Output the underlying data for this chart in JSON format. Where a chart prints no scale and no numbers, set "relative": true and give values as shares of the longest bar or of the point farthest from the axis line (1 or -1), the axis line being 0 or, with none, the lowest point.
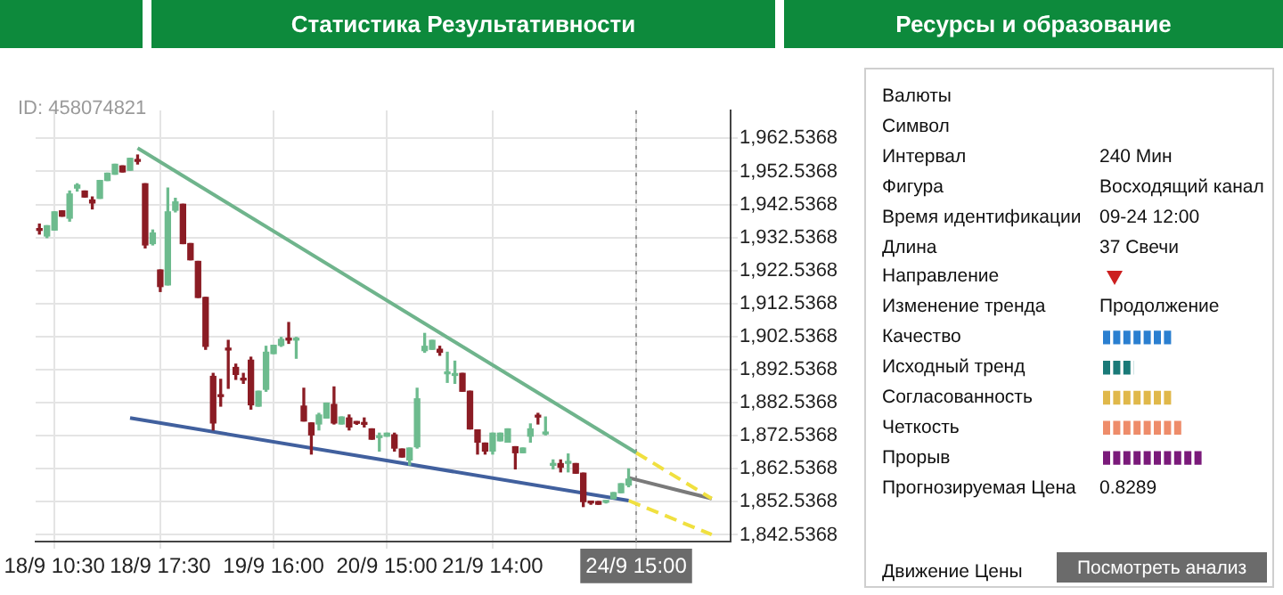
{
  "chart_data": [
    {
      "type": "other",
      "annotations": [
        "Статистика Результативности",
        "Ресурсы и образование"
      ]
    },
    {
      "type": "candlestick",
      "annotations": [
        "ID: 458074821"
      ],
      "categories": [
        null,
        null,
        "18/9 10:30",
        null,
        null,
        null,
        null,
        null,
        null,
        null,
        null,
        null,
        null,
        null,
        null,
        null,
        "18/9 17:30",
        null,
        null,
        null,
        null,
        null,
        null,
        null,
        null,
        null,
        null,
        null,
        null,
        null,
        null,
        "19/9 16:00",
        null,
        null,
        null,
        null,
        null,
        null,
        null,
        null,
        null,
        null,
        null,
        null,
        null,
        null,
        "20/9 15:00",
        null,
        null,
        null,
        null,
        null,
        null,
        null,
        null,
        null,
        null,
        null,
        null,
        null,
        "21/9 14:00",
        null,
        null,
        null,
        null,
        null,
        null,
        null,
        null,
        null,
        null,
        null,
        null,
        null,
        null,
        null,
        null,
        null,
        null,
        "24/9 15:00",
        null,
        null,
        null,
        null,
        null,
        null,
        null,
        null,
        null,
        null,
        null,
        null
      ],
      "ohlc": [
        [
          1934.8,
          1936.6,
          1933.6,
          1934.7
        ],
        [
          1933.0,
          1936.1,
          1932.5,
          1936.1
        ],
        [
          1934.8,
          1940.3,
          1934.8,
          1940.3
        ],
        [
          1940.6,
          1940.6,
          1939.0,
          1939.0
        ],
        [
          1938.4,
          1946.6,
          1937.5,
          1945.7
        ],
        [
          1947.5,
          1948.8,
          1946.6,
          1948.4
        ],
        [
          1946.6,
          1946.6,
          1944.8,
          1944.8
        ],
        [
          1943.9,
          1944.8,
          1941.2,
          1943.0
        ],
        [
          1944.4,
          1949.8,
          1944.4,
          1949.8
        ],
        [
          1949.8,
          1952.0,
          1949.8,
          1952.0
        ],
        [
          1951.7,
          1954.7,
          1951.7,
          1954.7
        ],
        [
          1954.2,
          1954.2,
          1952.4,
          1952.4
        ],
        [
          1952.9,
          1956.5,
          1952.9,
          1956.5
        ],
        [
          1956.0,
          1957.5,
          1954.8,
          1955.6
        ],
        [
          1948.8,
          1948.8,
          1929.4,
          1930.3
        ],
        [
          1930.7,
          1934.8,
          1930.3,
          1933.9
        ],
        [
          1922.7,
          1922.7,
          1916.2,
          1917.7
        ],
        [
          1918.2,
          1947.5,
          1918.2,
          1940.3
        ],
        [
          1940.8,
          1944.4,
          1940.3,
          1943.3
        ],
        [
          1942.6,
          1942.6,
          1930.7,
          1930.7
        ],
        [
          1930.7,
          1930.7,
          1925.8,
          1925.8
        ],
        [
          1925.3,
          1925.3,
          1914.4,
          1914.4
        ],
        [
          1914.4,
          1914.4,
          1898.7,
          1899.6
        ],
        [
          1890.5,
          1891.4,
          1874.3,
          1876.4
        ],
        [
          1884.6,
          1889.6,
          1881.5,
          1884.4
        ],
        [
          1898.7,
          1901.4,
          1886.9,
          1898.5
        ],
        [
          1893.2,
          1894.2,
          1889.6,
          1891.1
        ],
        [
          1889.6,
          1891.4,
          1888.4,
          1889.4
        ],
        [
          1895.4,
          1896.3,
          1880.6,
          1881.9
        ],
        [
          1881.5,
          1886.0,
          1881.5,
          1886.0
        ],
        [
          1886.6,
          1899.6,
          1886.0,
          1897.8
        ],
        [
          1897.4,
          1899.9,
          1897.4,
          1899.9
        ],
        [
          1899.9,
          1902.3,
          1899.6,
          1901.7
        ],
        [
          1901.7,
          1906.8,
          1900.5,
          1901.5
        ],
        [
          1901.5,
          1902.3,
          1896.0,
          1901.7
        ],
        [
          1881.5,
          1886.9,
          1877.0,
          1877.0
        ],
        [
          1876.4,
          1876.4,
          1867.0,
          1872.8
        ],
        [
          1876.1,
          1879.3,
          1874.3,
          1878.8
        ],
        [
          1877.9,
          1882.4,
          1877.9,
          1882.4
        ],
        [
          1882.0,
          1887.3,
          1876.1,
          1876.4
        ],
        [
          1876.1,
          1878.2,
          1876.1,
          1878.2
        ],
        [
          1877.9,
          1878.8,
          1874.3,
          1875.2
        ],
        [
          1876.4,
          1876.8,
          1876.0,
          1876.3
        ],
        [
          1876.1,
          1877.9,
          1875.2,
          1876.0
        ],
        [
          1874.6,
          1874.6,
          1871.5,
          1871.5
        ],
        [
          1872.0,
          1873.3,
          1867.9,
          1872.1
        ],
        [
          1872.4,
          1873.3,
          1872.4,
          1873.3
        ],
        [
          1872.8,
          1873.3,
          1867.9,
          1868.8
        ],
        [
          1868.5,
          1868.5,
          1866.1,
          1866.1
        ],
        [
          1865.2,
          1868.8,
          1863.7,
          1868.8
        ],
        [
          1869.2,
          1886.9,
          1868.8,
          1883.7
        ],
        [
          1898.3,
          1903.5,
          1897.8,
          1899.6
        ],
        [
          1898.7,
          1901.4,
          1898.7,
          1901.4
        ],
        [
          1898.7,
          1899.6,
          1896.9,
          1897.8
        ],
        [
          1891.3,
          1897.8,
          1888.7,
          1891.4
        ],
        [
          1890.8,
          1895.1,
          1888.4,
          1890.9
        ],
        [
          1891.4,
          1891.4,
          1886.0,
          1886.0
        ],
        [
          1886.0,
          1886.0,
          1874.6,
          1874.6
        ],
        [
          1874.3,
          1874.3,
          1867.0,
          1870.6
        ],
        [
          1870.3,
          1870.3,
          1867.0,
          1867.9
        ],
        [
          1867.9,
          1873.3,
          1867.0,
          1873.3
        ],
        [
          1871.0,
          1873.3,
          1871.0,
          1873.3
        ],
        [
          1870.6,
          1874.6,
          1870.6,
          1874.6
        ],
        [
          1869.2,
          1869.2,
          1862.5,
          1867.4
        ],
        [
          1867.4,
          1868.8,
          1867.4,
          1868.8
        ],
        [
          1872.4,
          1876.1,
          1870.6,
          1874.6
        ],
        [
          1878.4,
          1879.3,
          1876.1,
          1878.2
        ],
        [
          1873.1,
          1878.2,
          1872.8,
          1873.3
        ],
        [
          1863.6,
          1865.2,
          1862.5,
          1863.7
        ],
        [
          1864.1,
          1865.2,
          1861.6,
          1863.0
        ],
        [
          1864.2,
          1867.0,
          1861.6,
          1864.3
        ],
        [
          1864.1,
          1864.1,
          1861.2,
          1861.2
        ],
        [
          1861.2,
          1861.2,
          1851.1,
          1852.6
        ],
        [
          1852.3,
          1852.6,
          1851.8,
          1852.2
        ],
        [
          1852.6,
          1852.6,
          1851.8,
          1851.8
        ],
        [
          1852.4,
          1852.8,
          1852.2,
          1852.6
        ],
        [
          1853.5,
          1855.3,
          1853.5,
          1855.3
        ],
        [
          1855.3,
          1858.0,
          1855.3,
          1858.0
        ],
        [
          1857.6,
          1862.5,
          1857.1,
          1859.4
        ],
        null,
        null,
        null,
        null,
        null,
        null,
        null,
        null,
        null,
        null,
        null,
        null,
        null
      ],
      "colors": [
        "#8b1c24",
        "#6dbb8e",
        "#6dbb8e",
        "#8b1c24",
        "#6dbb8e",
        "#6dbb8e",
        "#8b1c24",
        "#8b1c24",
        "#6dbb8e",
        "#6dbb8e",
        "#6dbb8e",
        "#8b1c24",
        "#6dbb8e",
        "#8b1c24",
        "#8b1c24",
        "#6dbb8e",
        "#8b1c24",
        "#6dbb8e",
        "#6dbb8e",
        "#8b1c24",
        "#8b1c24",
        "#8b1c24",
        "#8b1c24",
        "#8b1c24",
        "#8b1c24",
        "#8b1c24",
        "#8b1c24",
        "#8b1c24",
        "#8b1c24",
        "#6dbb8e",
        "#6dbb8e",
        "#6dbb8e",
        "#6dbb8e",
        "#8b1c24",
        "#6dbb8e",
        "#8b1c24",
        "#8b1c24",
        "#6dbb8e",
        "#6dbb8e",
        "#8b1c24",
        "#6dbb8e",
        "#8b1c24",
        "#8b1c24",
        "#8b1c24",
        "#8b1c24",
        "#6dbb8e",
        "#6dbb8e",
        "#8b1c24",
        "#8b1c24",
        "#6dbb8e",
        "#6dbb8e",
        "#6dbb8e",
        "#6dbb8e",
        "#8b1c24",
        "#6dbb8e",
        "#6dbb8e",
        "#8b1c24",
        "#8b1c24",
        "#8b1c24",
        "#8b1c24",
        "#6dbb8e",
        "#6dbb8e",
        "#6dbb8e",
        "#8b1c24",
        "#6dbb8e",
        "#6dbb8e",
        "#8b1c24",
        "#6dbb8e",
        "#6dbb8e",
        "#8b1c24",
        "#6dbb8e",
        "#8b1c24",
        "#8b1c24",
        "#8b1c24",
        "#8b1c24",
        "#6dbb8e",
        "#6dbb8e",
        "#6dbb8e",
        "#6dbb8e",
        null,
        null,
        null,
        null,
        null,
        null,
        null,
        null,
        null,
        null,
        null,
        null,
        null
      ],
      "series": [
        {
          "type": "line",
          "color": "#6fb48c",
          "line_style": "solid",
          "values": [
            null,
            null,
            null,
            null,
            null,
            null,
            null,
            null,
            null,
            null,
            null,
            null,
            null,
            1959.6,
            null,
            null,
            null,
            null,
            null,
            null,
            null,
            null,
            null,
            null,
            null,
            null,
            null,
            null,
            null,
            null,
            null,
            null,
            null,
            null,
            null,
            null,
            null,
            null,
            null,
            null,
            null,
            null,
            null,
            null,
            null,
            null,
            null,
            null,
            null,
            null,
            null,
            null,
            null,
            null,
            null,
            null,
            null,
            null,
            null,
            null,
            null,
            null,
            null,
            null,
            null,
            null,
            null,
            null,
            null,
            null,
            null,
            null,
            null,
            null,
            null,
            null,
            null,
            null,
            null,
            1867.4,
            null,
            null,
            null,
            null,
            null,
            null,
            null,
            null,
            null,
            null,
            null,
            null
          ]
        },
        {
          "type": "line",
          "color": "#f0e040",
          "line_style": "dashed",
          "values": [
            null,
            null,
            null,
            null,
            null,
            null,
            null,
            null,
            null,
            null,
            null,
            null,
            null,
            null,
            null,
            null,
            null,
            null,
            null,
            null,
            null,
            null,
            null,
            null,
            null,
            null,
            null,
            null,
            null,
            null,
            null,
            null,
            null,
            null,
            null,
            null,
            null,
            null,
            null,
            null,
            null,
            null,
            null,
            null,
            null,
            null,
            null,
            null,
            null,
            null,
            null,
            null,
            null,
            null,
            null,
            null,
            null,
            null,
            null,
            null,
            null,
            null,
            null,
            null,
            null,
            null,
            null,
            null,
            null,
            null,
            null,
            null,
            null,
            null,
            null,
            null,
            null,
            null,
            null,
            1867.4,
            null,
            null,
            null,
            null,
            null,
            null,
            null,
            null,
            null,
            1853.5,
            null,
            null
          ]
        },
        {
          "type": "line",
          "color": "#41609e",
          "line_style": "solid",
          "values": [
            null,
            null,
            null,
            null,
            null,
            null,
            null,
            null,
            null,
            null,
            null,
            null,
            1877.9,
            null,
            null,
            null,
            null,
            null,
            null,
            null,
            null,
            null,
            null,
            null,
            null,
            null,
            null,
            null,
            null,
            null,
            null,
            null,
            null,
            null,
            null,
            null,
            null,
            null,
            null,
            null,
            null,
            null,
            null,
            null,
            null,
            null,
            null,
            null,
            null,
            null,
            null,
            null,
            null,
            null,
            null,
            null,
            null,
            null,
            null,
            null,
            null,
            null,
            null,
            null,
            null,
            null,
            null,
            null,
            null,
            null,
            null,
            null,
            null,
            null,
            null,
            null,
            null,
            null,
            1852.9,
            null,
            null,
            null,
            null,
            null,
            null,
            null,
            null,
            null,
            null,
            null,
            null,
            null
          ]
        },
        {
          "type": "line",
          "color": "#f0e040",
          "line_style": "dashed",
          "values": [
            null,
            null,
            null,
            null,
            null,
            null,
            null,
            null,
            null,
            null,
            null,
            null,
            null,
            null,
            null,
            null,
            null,
            null,
            null,
            null,
            null,
            null,
            null,
            null,
            null,
            null,
            null,
            null,
            null,
            null,
            null,
            null,
            null,
            null,
            null,
            null,
            null,
            null,
            null,
            null,
            null,
            null,
            null,
            null,
            null,
            null,
            null,
            null,
            null,
            null,
            null,
            null,
            null,
            null,
            null,
            null,
            null,
            null,
            null,
            null,
            null,
            null,
            null,
            null,
            null,
            null,
            null,
            null,
            null,
            null,
            null,
            null,
            null,
            null,
            null,
            null,
            null,
            null,
            1852.9,
            null,
            null,
            null,
            null,
            null,
            null,
            null,
            null,
            null,
            null,
            1842.6,
            null,
            null
          ]
        },
        {
          "type": "line",
          "color": "#7a7a7a",
          "line_style": "solid",
          "values": [
            null,
            null,
            null,
            null,
            null,
            null,
            null,
            null,
            null,
            null,
            null,
            null,
            null,
            null,
            null,
            null,
            null,
            null,
            null,
            null,
            null,
            null,
            null,
            null,
            null,
            null,
            null,
            null,
            null,
            null,
            null,
            null,
            null,
            null,
            null,
            null,
            null,
            null,
            null,
            null,
            null,
            null,
            null,
            null,
            null,
            null,
            null,
            null,
            null,
            null,
            null,
            null,
            null,
            null,
            null,
            null,
            null,
            null,
            null,
            null,
            null,
            null,
            null,
            null,
            null,
            null,
            null,
            null,
            null,
            null,
            null,
            null,
            null,
            null,
            null,
            null,
            null,
            null,
            1859.8,
            null,
            null,
            null,
            null,
            null,
            null,
            null,
            null,
            null,
            null,
            1853.5,
            null,
            null
          ]
        }
      ],
      "ylim": [
        1840.5,
        1971
      ],
      "yticks": [
        {
          "value": 1842.5368,
          "label": "1,842.5368"
        },
        {
          "value": 1852.5368,
          "label": "1,852.5368"
        },
        {
          "value": 1862.5368,
          "label": "1,862.5368"
        },
        {
          "value": 1872.5368,
          "label": "1,872.5368"
        },
        {
          "value": 1882.5368,
          "label": "1,882.5368"
        },
        {
          "value": 1892.5368,
          "label": "1,892.5368"
        },
        {
          "value": 1902.5368,
          "label": "1,902.5368"
        },
        {
          "value": 1912.5368,
          "label": "1,912.5368"
        },
        {
          "value": 1922.5368,
          "label": "1,922.5368"
        },
        {
          "value": 1932.5368,
          "label": "1,932.5368"
        },
        {
          "value": 1942.5368,
          "label": "1,942.5368"
        },
        {
          "value": 1952.5368,
          "label": "1,952.5368"
        },
        {
          "value": 1962.5368,
          "label": "1,962.5368"
        }
      ],
      "ref_lines": [
        {
          "axis": "x",
          "value": "24/9 15:00",
          "color": "#9a9a9a",
          "line_style": "dotted"
        }
      ],
      "grid": true
    },
    {
      "type": "other",
      "categories": [
        "Валюты",
        "Символ",
        "Интервал",
        "Фигура",
        "Время идентификации",
        "Длина",
        "Направление",
        "Изменение тренда",
        "Качество",
        "Исходный тренд",
        "Согласованность",
        "Четкость",
        "Прорыв",
        "Прогнозируемая Цена"
      ],
      "value_labels": [
        null,
        null,
        "240 Мин",
        "Восходящий канал",
        "09-24 12:00",
        "37 Свечи",
        null,
        "Продолжение",
        null,
        null,
        null,
        null,
        null,
        "0.8289"
      ],
      "annotations": [
        "Движение Цены",
        "Посмотреть анализ"
      ]
    },
    {
      "type": "bar",
      "orientation": "horizontal",
      "relative": true,
      "categories": [
        null,
        null,
        null,
        null,
        null
      ],
      "values": [
        0.7,
        0.3,
        0.7,
        0.8,
        1.0
      ],
      "colors": [
        "#2a7fd0",
        "#1a7a78",
        "#e0b84a",
        "#ee8c6a",
        "#7a1a7a"
      ]
    }
  ]
}
